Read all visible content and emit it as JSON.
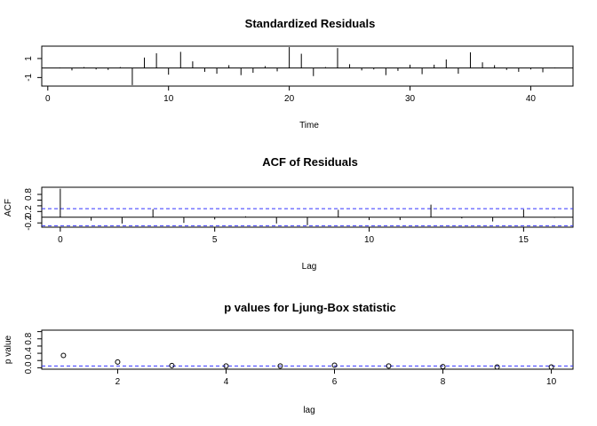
{
  "chart_data": [
    {
      "type": "line",
      "title": "Standardized Residuals",
      "xlabel": "Time",
      "ylabel": "",
      "xlim": [
        -0.5,
        43.5
      ],
      "ylim": [
        -1.9,
        2.3
      ],
      "xticks": [
        0,
        10,
        20,
        30,
        40
      ],
      "yticks": [
        -1,
        1
      ],
      "x": [
        1,
        2,
        3,
        4,
        5,
        6,
        7,
        8,
        9,
        10,
        11,
        12,
        13,
        14,
        15,
        16,
        17,
        18,
        19,
        20,
        21,
        22,
        23,
        24,
        25,
        26,
        27,
        28,
        29,
        30,
        31,
        32,
        33,
        34,
        35,
        36,
        37,
        38,
        39,
        40,
        41,
        42
      ],
      "values": [
        0.05,
        -0.25,
        0.1,
        -0.15,
        -0.2,
        0.1,
        -1.8,
        1.1,
        1.55,
        -0.7,
        1.7,
        0.7,
        -0.4,
        -0.6,
        0.3,
        -0.75,
        -0.5,
        0.2,
        -0.35,
        2.2,
        1.5,
        -0.85,
        0.1,
        2.1,
        0.4,
        -0.25,
        -0.15,
        -0.75,
        -0.3,
        0.35,
        -0.65,
        0.35,
        0.9,
        -0.6,
        1.65,
        0.6,
        0.3,
        -0.2,
        -0.4,
        -0.15,
        -0.45,
        0.05
      ]
    },
    {
      "type": "bar",
      "title": "ACF of Residuals",
      "xlabel": "Lag",
      "ylabel": "ACF",
      "xlim": [
        -0.6,
        16.6
      ],
      "ylim": [
        -0.35,
        1.05
      ],
      "xticks": [
        0,
        5,
        10,
        15
      ],
      "yticks": [
        -0.2,
        0.2,
        0.4,
        0.6,
        0.8
      ],
      "ytick_labels": [
        "-0.2",
        "0.2",
        "0.8"
      ],
      "categories": [
        0,
        1,
        2,
        3,
        4,
        5,
        6,
        7,
        8,
        9,
        10,
        11,
        12,
        13,
        14,
        15,
        16
      ],
      "values": [
        1.0,
        -0.12,
        -0.22,
        0.28,
        -0.2,
        -0.08,
        0.03,
        -0.22,
        -0.28,
        0.26,
        -0.1,
        -0.1,
        0.44,
        -0.04,
        -0.15,
        0.27,
        -0.02
      ],
      "confidence_bounds": [
        -0.3,
        0.3
      ]
    },
    {
      "type": "scatter",
      "title": "p values for Ljung-Box statistic",
      "xlabel": "lag",
      "ylabel": "p value",
      "xlim": [
        0.6,
        10.4
      ],
      "ylim": [
        -0.04,
        1.04
      ],
      "xticks": [
        2,
        4,
        6,
        8,
        10
      ],
      "yticks": [
        0.0,
        0.2,
        0.4,
        0.6,
        0.8,
        1.0
      ],
      "ytick_labels": [
        "0.0",
        "0.4",
        "0.8"
      ],
      "x": [
        1,
        2,
        3,
        4,
        5,
        6,
        7,
        8,
        9,
        10
      ],
      "values": [
        0.34,
        0.16,
        0.06,
        0.05,
        0.05,
        0.07,
        0.05,
        0.03,
        0.02,
        0.02
      ],
      "reference_line": 0.05
    }
  ]
}
